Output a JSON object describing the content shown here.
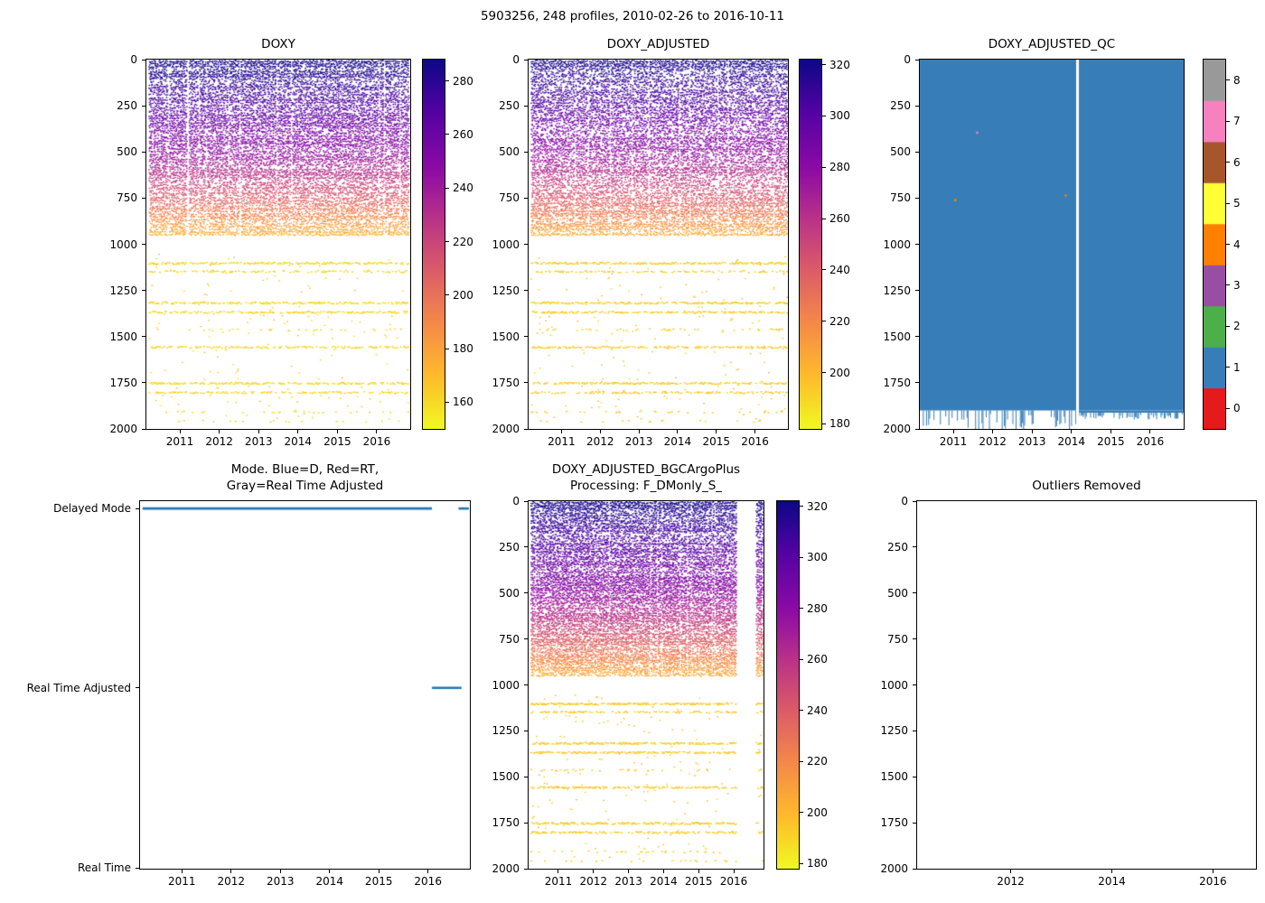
{
  "figure": {
    "title": "5903256, 248 profiles, 2010-02-26 to 2016-10-11",
    "platform_id": "5903256",
    "n_profiles": 248,
    "start_date": "2010-02-26",
    "end_date": "2016-10-11"
  },
  "chart_data": [
    {
      "id": "doxy",
      "type": "profile-scatter",
      "title": "DOXY",
      "x_range": [
        2010.15,
        2016.85
      ],
      "x_ticks": [
        2011,
        2012,
        2013,
        2014,
        2015,
        2016
      ],
      "y_range": [
        0,
        2000
      ],
      "y_ticks": [
        0,
        250,
        500,
        750,
        1000,
        1250,
        1500,
        1750,
        2000
      ],
      "y_inverted": true,
      "n_profiles": 248,
      "segments": [
        [
          2010.2,
          2016.83
        ]
      ],
      "dense_depth_max": 950,
      "value_profile": [
        [
          0,
          288
        ],
        [
          120,
          278
        ],
        [
          250,
          268
        ],
        [
          400,
          254
        ],
        [
          500,
          246
        ],
        [
          650,
          224
        ],
        [
          750,
          208
        ],
        [
          850,
          190
        ],
        [
          950,
          172
        ]
      ],
      "band_value": 161,
      "bands": [
        [
          1100,
          0.75
        ],
        [
          1145,
          0.4
        ],
        [
          1315,
          0.7
        ],
        [
          1365,
          0.6
        ],
        [
          1460,
          0.15
        ],
        [
          1555,
          0.6
        ],
        [
          1750,
          0.68
        ],
        [
          1800,
          0.5
        ],
        [
          1905,
          0.1
        ],
        [
          1955,
          0.08
        ]
      ],
      "sparse_deep": 150,
      "colorbar": {
        "cmap": "plasma",
        "range": [
          150,
          288
        ],
        "ticks": [
          160,
          180,
          200,
          220,
          240,
          260,
          280
        ]
      }
    },
    {
      "id": "doxy_adjusted",
      "type": "profile-scatter",
      "title": "DOXY_ADJUSTED",
      "x_range": [
        2010.15,
        2016.85
      ],
      "x_ticks": [
        2011,
        2012,
        2013,
        2014,
        2015,
        2016
      ],
      "y_range": [
        0,
        2000
      ],
      "y_ticks": [
        0,
        250,
        500,
        750,
        1000,
        1250,
        1500,
        1750,
        2000
      ],
      "y_inverted": true,
      "n_profiles": 248,
      "segments": [
        [
          2010.2,
          2016.83
        ]
      ],
      "dense_depth_max": 950,
      "value_profile": [
        [
          0,
          320
        ],
        [
          120,
          310
        ],
        [
          250,
          300
        ],
        [
          400,
          286
        ],
        [
          500,
          278
        ],
        [
          650,
          256
        ],
        [
          750,
          240
        ],
        [
          850,
          222
        ],
        [
          950,
          204
        ]
      ],
      "band_value": 193,
      "bands": [
        [
          1100,
          0.75
        ],
        [
          1145,
          0.4
        ],
        [
          1315,
          0.7
        ],
        [
          1365,
          0.6
        ],
        [
          1460,
          0.15
        ],
        [
          1555,
          0.6
        ],
        [
          1750,
          0.68
        ],
        [
          1800,
          0.5
        ],
        [
          1905,
          0.1
        ],
        [
          1955,
          0.08
        ]
      ],
      "sparse_deep": 150,
      "colorbar": {
        "cmap": "plasma",
        "range": [
          178,
          322
        ],
        "ticks": [
          180,
          200,
          220,
          240,
          260,
          280,
          300,
          320
        ]
      }
    },
    {
      "id": "doxy_adjusted_qc",
      "type": "qc-map",
      "title": "DOXY_ADJUSTED_QC",
      "x_range": [
        2010.15,
        2016.85
      ],
      "x_ticks": [
        2011,
        2012,
        2013,
        2014,
        2015,
        2016
      ],
      "y_range": [
        0,
        2000
      ],
      "y_ticks": [
        0,
        250,
        500,
        750,
        1000,
        1250,
        1500,
        1750,
        2000
      ],
      "y_inverted": true,
      "dominant_qc": 1,
      "fill_color": "#377eb8",
      "deep_boundary": 1900,
      "gap_year": 2014.15,
      "anomalies": [
        {
          "x": 2011.05,
          "depth": 760,
          "color": "#ff7f00"
        },
        {
          "x": 2013.85,
          "depth": 735,
          "color": "#ff7f00"
        },
        {
          "x": 2011.6,
          "depth": 395,
          "color": "#f781bf"
        }
      ],
      "colorbar": {
        "discrete": true,
        "ticks": [
          0,
          1,
          2,
          3,
          4,
          5,
          6,
          7,
          8
        ],
        "colors": [
          "#e41a1c",
          "#377eb8",
          "#4daf4a",
          "#984ea3",
          "#ff7f00",
          "#ffff33",
          "#a65628",
          "#f781bf",
          "#999999"
        ]
      }
    },
    {
      "id": "mode",
      "type": "mode-line",
      "title": "Mode. Blue=D, Red=RT,\nGray=Real Time Adjusted",
      "x_range": [
        2010.15,
        2016.85
      ],
      "x_ticks": [
        2011,
        2012,
        2013,
        2014,
        2015,
        2016
      ],
      "categories": [
        "Delayed Mode",
        "Real Time Adjusted",
        "Real Time"
      ],
      "category_positions": [
        0.02,
        0.508,
        0.998
      ],
      "line_color": "#1f77b4",
      "segments": [
        {
          "mode": "Delayed Mode",
          "start": 2010.2,
          "end": 2016.08
        },
        {
          "mode": "Real Time Adjusted",
          "start": 2016.08,
          "end": 2016.68
        },
        {
          "mode": "Delayed Mode",
          "start": 2016.62,
          "end": 2016.83
        }
      ]
    },
    {
      "id": "doxy_adjusted_bgcargoplus",
      "type": "profile-scatter",
      "title": "DOXY_ADJUSTED_BGCArgoPlus\nProcessing: F_DMonly_S_",
      "x_range": [
        2010.15,
        2016.85
      ],
      "x_ticks": [
        2011,
        2012,
        2013,
        2014,
        2015,
        2016
      ],
      "y_range": [
        0,
        2000
      ],
      "y_ticks": [
        0,
        250,
        500,
        750,
        1000,
        1250,
        1500,
        1750,
        2000
      ],
      "y_inverted": true,
      "n_profiles": 248,
      "segments": [
        [
          2010.2,
          2016.06
        ],
        [
          2016.62,
          2016.82
        ]
      ],
      "dense_depth_max": 950,
      "value_profile": [
        [
          0,
          320
        ],
        [
          120,
          310
        ],
        [
          250,
          300
        ],
        [
          400,
          286
        ],
        [
          500,
          278
        ],
        [
          650,
          256
        ],
        [
          750,
          240
        ],
        [
          850,
          222
        ],
        [
          950,
          204
        ]
      ],
      "band_value": 193,
      "bands": [
        [
          1100,
          0.75
        ],
        [
          1145,
          0.4
        ],
        [
          1315,
          0.7
        ],
        [
          1365,
          0.6
        ],
        [
          1460,
          0.15
        ],
        [
          1555,
          0.6
        ],
        [
          1750,
          0.68
        ],
        [
          1800,
          0.5
        ],
        [
          1905,
          0.1
        ],
        [
          1955,
          0.08
        ]
      ],
      "sparse_deep": 140,
      "colorbar": {
        "cmap": "plasma",
        "range": [
          178,
          322
        ],
        "ticks": [
          180,
          200,
          220,
          240,
          260,
          280,
          300,
          320
        ]
      }
    },
    {
      "id": "outliers_removed",
      "type": "empty",
      "title": "Outliers Removed",
      "x_range": [
        2010.15,
        2016.85
      ],
      "x_ticks": [
        2012,
        2014,
        2016
      ],
      "y_range": [
        0,
        2000
      ],
      "y_ticks": [
        0,
        250,
        500,
        750,
        1000,
        1250,
        1500,
        1750,
        2000
      ],
      "y_inverted": true
    }
  ]
}
